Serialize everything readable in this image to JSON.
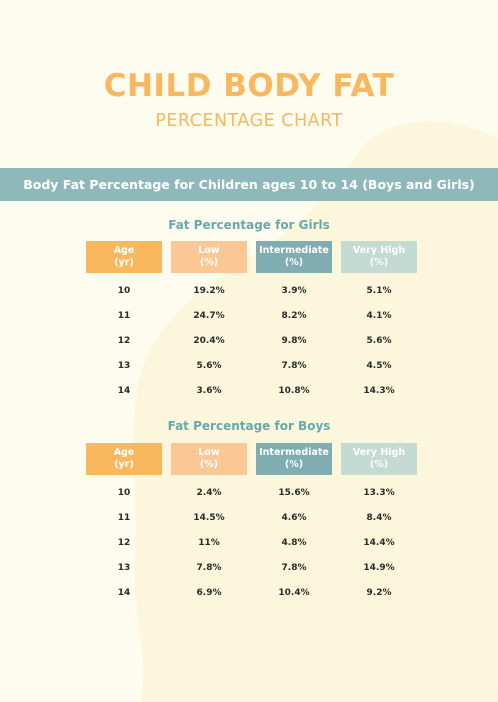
{
  "title": "CHILD BODY FAT",
  "subtitle": "PERCENTAGE CHART",
  "banner": "Body Fat Percentage for Children ages 10 to 14 (Boys and Girls)",
  "colors": {
    "background": "#fdfcee",
    "blob": "#fbf6dc",
    "title": "#f9b85e",
    "banner": "#8eb8ba",
    "section_title": "#6aa8ac",
    "header_age": "#f9b85e",
    "header_low": "#fbc895",
    "header_intermediate": "#7fadb1",
    "header_very_high": "#c4dbd4"
  },
  "headers": {
    "age": [
      "Age",
      "(yr)"
    ],
    "low": [
      "Low",
      "(%)"
    ],
    "intermediate": [
      "Intermediate",
      "(%)"
    ],
    "very_high": [
      "Very High",
      "(%)"
    ]
  },
  "girls": {
    "title": "Fat Percentage for Girls",
    "rows": [
      {
        "age": "10",
        "low": "19.2%",
        "intermediate": "3.9%",
        "very_high": "5.1%"
      },
      {
        "age": "11",
        "low": "24.7%",
        "intermediate": "8.2%",
        "very_high": "4.1%"
      },
      {
        "age": "12",
        "low": "20.4%",
        "intermediate": "9.8%",
        "very_high": "5.6%"
      },
      {
        "age": "13",
        "low": "5.6%",
        "intermediate": "7.8%",
        "very_high": "4.5%"
      },
      {
        "age": "14",
        "low": "3.6%",
        "intermediate": "10.8%",
        "very_high": "14.3%"
      }
    ]
  },
  "boys": {
    "title": "Fat Percentage for Boys",
    "rows": [
      {
        "age": "10",
        "low": "2.4%",
        "intermediate": "15.6%",
        "very_high": "13.3%"
      },
      {
        "age": "11",
        "low": "14.5%",
        "intermediate": "4.6%",
        "very_high": "8.4%"
      },
      {
        "age": "12",
        "low": "11%",
        "intermediate": "4.8%",
        "very_high": "14.4%"
      },
      {
        "age": "13",
        "low": "7.8%",
        "intermediate": "7.8%",
        "very_high": "14.9%"
      },
      {
        "age": "14",
        "low": "6.9%",
        "intermediate": "10.4%",
        "very_high": "9.2%"
      }
    ]
  }
}
